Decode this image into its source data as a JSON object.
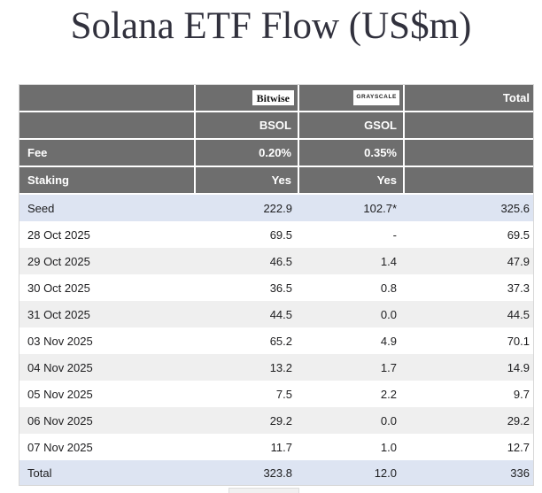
{
  "title": "Solana ETF Flow (US$m)",
  "colors": {
    "header_bg": "#6e6e6e",
    "header_text": "#ffffff",
    "highlight_row_bg": "#dde4f2",
    "alt_row_bg": "#efefef",
    "title_color": "#31313d",
    "data_text": "#1d1d1f"
  },
  "table": {
    "total_header": "Total",
    "fee_label": "Fee",
    "staking_label": "Staking",
    "issuers": [
      {
        "logo": "Bitwise",
        "ticker": "BSOL",
        "fee": "0.20%",
        "staking": "Yes"
      },
      {
        "logo": "GRAYSCALE",
        "ticker": "GSOL",
        "fee": "0.35%",
        "staking": "Yes"
      }
    ],
    "rows": [
      {
        "label": "Seed",
        "bsol": "222.9",
        "gsol": "102.7*",
        "total": "325.6"
      },
      {
        "label": "28 Oct 2025",
        "bsol": "69.5",
        "gsol": "-",
        "total": "69.5"
      },
      {
        "label": "29 Oct 2025",
        "bsol": "46.5",
        "gsol": "1.4",
        "total": "47.9"
      },
      {
        "label": "30 Oct 2025",
        "bsol": "36.5",
        "gsol": "0.8",
        "total": "37.3"
      },
      {
        "label": "31 Oct 2025",
        "bsol": "44.5",
        "gsol": "0.0",
        "total": "44.5"
      },
      {
        "label": "03 Nov 2025",
        "bsol": "65.2",
        "gsol": "4.9",
        "total": "70.1"
      },
      {
        "label": "04 Nov 2025",
        "bsol": "13.2",
        "gsol": "1.7",
        "total": "14.9"
      },
      {
        "label": "05 Nov 2025",
        "bsol": "7.5",
        "gsol": "2.2",
        "total": "9.7"
      },
      {
        "label": "06 Nov 2025",
        "bsol": "29.2",
        "gsol": "0.0",
        "total": "29.2"
      },
      {
        "label": "07 Nov 2025",
        "bsol": "11.7",
        "gsol": "1.0",
        "total": "12.7"
      },
      {
        "label": "Total",
        "bsol": "323.8",
        "gsol": "12.0",
        "total": "336"
      }
    ]
  },
  "chart_data": {
    "type": "table",
    "title": "Solana ETF Flow (US$m)",
    "categories": [
      "Seed",
      "28 Oct 2025",
      "29 Oct 2025",
      "30 Oct 2025",
      "31 Oct 2025",
      "03 Nov 2025",
      "04 Nov 2025",
      "05 Nov 2025",
      "06 Nov 2025",
      "07 Nov 2025",
      "Total"
    ],
    "series": [
      {
        "name": "Bitwise BSOL",
        "fee": "0.20%",
        "staking": "Yes",
        "values": [
          222.9,
          69.5,
          46.5,
          36.5,
          44.5,
          65.2,
          13.2,
          7.5,
          29.2,
          11.7,
          323.8
        ]
      },
      {
        "name": "Grayscale GSOL",
        "fee": "0.35%",
        "staking": "Yes",
        "values": [
          102.7,
          null,
          1.4,
          0.8,
          0.0,
          4.9,
          1.7,
          2.2,
          0.0,
          1.0,
          12.0
        ]
      },
      {
        "name": "Total",
        "values": [
          325.6,
          69.5,
          47.9,
          37.3,
          44.5,
          70.1,
          14.9,
          9.7,
          29.2,
          12.7,
          336
        ]
      }
    ],
    "notes": "Grayscale seed value shown as 102.7 with asterisk; 28 Oct GSOL shown as dash"
  }
}
